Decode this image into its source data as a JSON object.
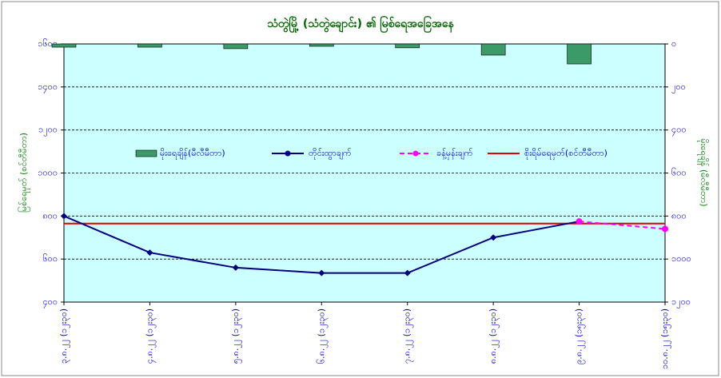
{
  "chart_data": {
    "type": "combo",
    "title": "သံတွဲမြို့ (သံတွဲချောင်း) ၏ မြစ်ရေအခြေအနေ",
    "ylabel": "မြစ်ရေမှတ် (စင်တီမီတာ)",
    "y2label": "မိုးရေချိန် (မီလီမီတာ)",
    "categories": [
      "၃.၈.၂၂ (၁၂း၃၀)",
      "၄.၈.၂၂ (၁၂း၃၀)",
      "၅.၈.၂၂ (၁၂း၃၀)",
      "၆.၈.၂၂ (၁၂း၃၀)",
      "၇.၈.၂၂ (၁၂း၃၀)",
      "၈.၈.၂၂ (၁၂း၃၀)",
      "၉.၈.၂၂ (၁၅း၃၀)",
      "၁၀.၈.၂၂ (၁၅း၃၀)"
    ],
    "ylim": [
      400,
      1600
    ],
    "yticks": [
      {
        "value": 400,
        "label": "၄၀၀"
      },
      {
        "value": 600,
        "label": "၆၀၀"
      },
      {
        "value": 800,
        "label": "၈၀၀"
      },
      {
        "value": 1000,
        "label": "၁၀၀၀"
      },
      {
        "value": 1200,
        "label": "၁၂၀၀"
      },
      {
        "value": 1400,
        "label": "၁၄၀၀"
      },
      {
        "value": 1600,
        "label": "၁၆၀၀"
      }
    ],
    "y2lim": [
      0,
      1200
    ],
    "y2_inverted": true,
    "y2ticks": [
      {
        "value": 0,
        "label": "၀"
      },
      {
        "value": 200,
        "label": "၂၀၀"
      },
      {
        "value": 400,
        "label": "၄၀၀"
      },
      {
        "value": 600,
        "label": "၆၀၀"
      },
      {
        "value": 800,
        "label": "၈၀၀"
      },
      {
        "value": 1000,
        "label": "၁၀၀၀"
      },
      {
        "value": 1200,
        "label": "၁၂၀၀"
      }
    ],
    "grid": true,
    "series": [
      {
        "name": "မိုးရေချိန်(မီလီမီတာ)",
        "type": "bar",
        "axis": "y2",
        "color": "#3c9a68",
        "values": [
          15,
          15,
          22,
          11,
          18,
          52,
          93,
          null
        ]
      },
      {
        "name": "တိုင်းထွာချက်",
        "type": "line",
        "color": "#000080",
        "values": [
          800,
          630,
          560,
          535,
          535,
          700,
          775,
          null
        ]
      },
      {
        "name": "ခန့်မှန်းချက်",
        "type": "line",
        "dashed": true,
        "color": "#ff00ff",
        "values": [
          null,
          null,
          null,
          null,
          null,
          null,
          775,
          740
        ]
      }
    ],
    "danger_line": {
      "name": "စိုးရိမ်ရေမှတ်(စင်တီမီတာ)",
      "color": "#e00000",
      "value": 765
    }
  }
}
